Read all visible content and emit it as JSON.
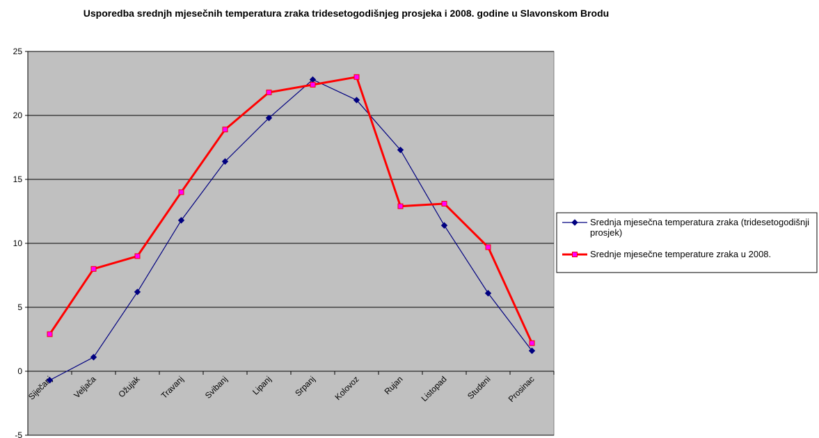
{
  "chart_data": {
    "type": "line",
    "title": "Usporedba srednjh mjesečnih temperatura zraka tridesetogodišnjeg prosjeka i 2008. godine u Slavonskom Brodu",
    "categories": [
      "Siječanj",
      "Veljača",
      "Ožujak",
      "Travanj",
      "Svibanj",
      "Lipanj",
      "Srpanj",
      "Kolovoz",
      "Rujan",
      "Listopad",
      "Studeni",
      "Prosinac"
    ],
    "series": [
      {
        "name": "Srednja mjesečna temperatura zraka (tridesetogodišnji prosjek)",
        "color": "#000080",
        "values": [
          -0.7,
          1.1,
          6.2,
          11.8,
          16.4,
          19.8,
          22.8,
          21.2,
          17.3,
          11.4,
          6.1,
          1.6
        ]
      },
      {
        "name": "Srednje mjesečne temperature zraka u 2008.",
        "color": "#ff0000",
        "values": [
          2.9,
          8.0,
          9.0,
          14.0,
          18.9,
          21.8,
          22.4,
          23.0,
          12.9,
          13.1,
          9.7,
          2.2
        ]
      }
    ],
    "ylim": [
      -5,
      25
    ],
    "yticks": [
      -5,
      0,
      5,
      10,
      15,
      20,
      25
    ],
    "grid": true,
    "legend": "right"
  }
}
